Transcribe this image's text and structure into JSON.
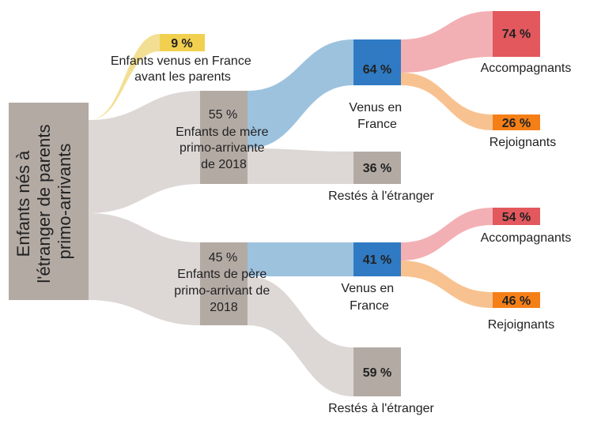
{
  "colors": {
    "grey_node": "#b3aaa4",
    "grey_flow": "#ddd8d5",
    "yellow_node": "#f2d04f",
    "yellow_flow": "#f3df94",
    "blue_node": "#2f7ac3",
    "blue_flow": "#9dc2de",
    "red_node": "#e2585d",
    "red_flow": "#f3b0b4",
    "orange_node": "#f57f17",
    "orange_flow": "#f8c290"
  },
  "nodes": {
    "root": {
      "lines": [
        "Enfants nés à",
        "l'étranger de parents",
        "primo-arrivants"
      ]
    },
    "before": {
      "pct": "9 %",
      "lines": [
        "Enfants venus en France",
        "avant les parents"
      ]
    },
    "mother": {
      "pct": "55 %",
      "lines": [
        "Enfants de mère",
        "primo-arrivante",
        "de 2018"
      ]
    },
    "father": {
      "pct": "45 %",
      "lines": [
        "Enfants de père",
        "primo-arrivant de",
        "2018"
      ]
    },
    "m_came": {
      "pct": "64 %",
      "lines": [
        "Venus en",
        "France"
      ]
    },
    "m_stayed": {
      "pct": "36 %",
      "lines": [
        "Restés à l'étranger"
      ]
    },
    "f_came": {
      "pct": "41 %",
      "lines": [
        "Venus en",
        "France"
      ]
    },
    "f_stayed": {
      "pct": "59 %",
      "lines": [
        "Restés à l'étranger"
      ]
    },
    "m_acc": {
      "pct": "74 %",
      "lines": [
        "Accompagnants"
      ]
    },
    "m_rej": {
      "pct": "26 %",
      "lines": [
        "Rejoignants"
      ]
    },
    "f_acc": {
      "pct": "54 %",
      "lines": [
        "Accompagnants"
      ]
    },
    "f_rej": {
      "pct": "46 %",
      "lines": [
        "Rejoignants"
      ]
    }
  }
}
